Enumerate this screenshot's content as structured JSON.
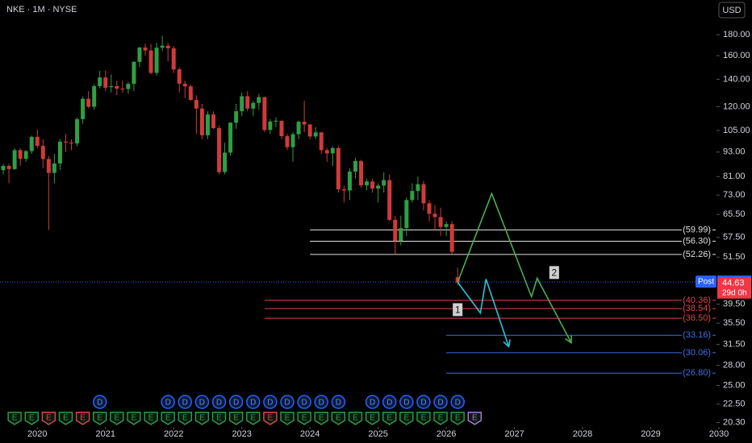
{
  "chart_data": {
    "type": "candlestick",
    "title": "NKE · 1M · NYSE",
    "currency": "USD",
    "log_scale": true,
    "up_color": "#2f9e44",
    "down_color": "#d03a3a",
    "x": [
      "2019-06",
      "2019-07",
      "2019-08",
      "2019-09",
      "2019-10",
      "2019-11",
      "2019-12",
      "2020-01",
      "2020-02",
      "2020-03",
      "2020-04",
      "2020-05",
      "2020-06",
      "2020-07",
      "2020-08",
      "2020-09",
      "2020-10",
      "2020-11",
      "2020-12",
      "2021-01",
      "2021-02",
      "2021-03",
      "2021-04",
      "2021-05",
      "2021-06",
      "2021-07",
      "2021-08",
      "2021-09",
      "2021-10",
      "2021-11",
      "2021-12",
      "2022-01",
      "2022-02",
      "2022-03",
      "2022-04",
      "2022-05",
      "2022-06",
      "2022-07",
      "2022-08",
      "2022-09",
      "2022-10",
      "2022-11",
      "2022-12",
      "2023-01",
      "2023-02",
      "2023-03",
      "2023-04",
      "2023-05",
      "2023-06",
      "2023-07",
      "2023-08",
      "2023-09",
      "2023-10",
      "2023-11",
      "2023-12",
      "2024-01",
      "2024-02",
      "2024-03",
      "2024-04",
      "2024-05",
      "2024-06",
      "2024-07",
      "2024-08",
      "2024-09",
      "2024-10",
      "2024-11",
      "2024-12",
      "2025-01",
      "2025-02",
      "2025-03",
      "2025-04",
      "2025-05",
      "2025-06",
      "2025-07",
      "2025-08",
      "2025-09",
      "2025-10",
      "2025-11",
      "2025-12",
      "2026-01",
      "2026-02",
      "2026-03"
    ],
    "ohlc": [
      [
        82,
        86,
        77,
        84
      ],
      [
        84,
        87,
        82,
        86
      ],
      [
        86,
        87,
        78,
        84.5
      ],
      [
        84.5,
        95,
        84,
        94
      ],
      [
        94,
        95,
        86,
        89.5
      ],
      [
        89.5,
        94,
        88,
        93.5
      ],
      [
        93.5,
        102,
        92,
        101.3
      ],
      [
        101.3,
        105.6,
        95,
        96.3
      ],
      [
        96.3,
        100,
        85,
        89.4
      ],
      [
        89.4,
        91,
        60,
        82.7
      ],
      [
        82.7,
        92,
        78,
        87.2
      ],
      [
        87.2,
        100,
        84,
        98.6
      ],
      [
        98.6,
        103,
        93,
        98.1
      ],
      [
        98.1,
        100,
        94,
        97.6
      ],
      [
        97.6,
        113,
        96,
        111.9
      ],
      [
        111.9,
        127,
        109,
        125.5
      ],
      [
        125.5,
        131,
        119,
        120
      ],
      [
        120,
        136,
        118,
        134.7
      ],
      [
        134.7,
        147,
        133,
        141.5
      ],
      [
        141.5,
        147,
        131,
        133.6
      ],
      [
        134,
        144,
        130,
        134.8
      ],
      [
        134.8,
        139,
        128,
        132.9
      ],
      [
        132.9,
        139,
        130,
        132.6
      ],
      [
        132.6,
        138,
        129,
        136.5
      ],
      [
        136.5,
        155,
        131,
        154.5
      ],
      [
        154.5,
        168,
        150,
        167.5
      ],
      [
        167.5,
        171,
        160,
        164.7
      ],
      [
        164.7,
        171,
        144,
        145.2
      ],
      [
        145.2,
        172,
        143,
        167.3
      ],
      [
        167.3,
        179,
        164,
        169.2
      ],
      [
        169.2,
        172,
        155,
        166.7
      ],
      [
        166.7,
        169,
        145,
        148.1
      ],
      [
        148.1,
        150,
        130,
        136.6
      ],
      [
        136.6,
        139,
        126,
        134.6
      ],
      [
        134.6,
        136,
        124,
        124.7
      ],
      [
        124.7,
        128,
        103,
        118.8
      ],
      [
        118.8,
        122,
        100,
        102.2
      ],
      [
        102.2,
        117,
        100,
        114.9
      ],
      [
        114.9,
        117,
        106,
        106.4
      ],
      [
        106.4,
        108,
        82,
        83.1
      ],
      [
        83.1,
        98,
        82,
        92.7
      ],
      [
        92.7,
        110,
        91,
        109.7
      ],
      [
        109.7,
        122,
        106,
        117
      ],
      [
        117,
        130,
        114,
        127.3
      ],
      [
        127.3,
        131,
        117,
        118.8
      ],
      [
        118.8,
        124,
        114,
        122.6
      ],
      [
        122.6,
        129,
        118,
        126.7
      ],
      [
        126.7,
        127,
        104,
        105.3
      ],
      [
        105.3,
        112,
        103,
        110.4
      ],
      [
        110.4,
        113,
        107,
        110.9
      ],
      [
        110.9,
        111,
        100,
        101.7
      ],
      [
        101.7,
        103,
        94,
        95.6
      ],
      [
        95.6,
        104,
        88,
        102.8
      ],
      [
        102.8,
        111,
        100,
        110.3
      ],
      [
        110.3,
        124,
        104,
        108.6
      ],
      [
        108.6,
        109,
        100,
        101.5
      ],
      [
        101.5,
        107,
        100,
        103.9
      ],
      [
        103.9,
        104,
        92,
        94
      ],
      [
        94,
        95,
        88,
        92.3
      ],
      [
        92.3,
        96,
        86,
        95.1
      ],
      [
        95.1,
        96,
        74,
        75.4
      ],
      [
        75.4,
        77,
        70,
        74.9
      ],
      [
        74.9,
        85,
        71,
        83.3
      ],
      [
        83.3,
        90,
        80,
        88.4
      ],
      [
        88.4,
        89,
        76,
        77.1
      ],
      [
        77.1,
        80,
        75,
        78.8
      ],
      [
        78.8,
        80,
        74,
        75.7
      ],
      [
        75.7,
        78,
        70,
        77
      ],
      [
        77,
        83,
        74,
        79.4
      ],
      [
        79.4,
        82,
        63,
        63.5
      ],
      [
        63.5,
        65,
        52.3,
        56.4
      ],
      [
        56.4,
        65,
        55,
        60.6
      ],
      [
        60.6,
        72,
        58,
        71
      ],
      [
        71,
        78,
        70,
        74.7
      ],
      [
        74.7,
        81,
        71,
        77.6
      ],
      [
        77.6,
        79,
        67,
        69.7
      ],
      [
        69.7,
        71,
        63,
        65.7
      ],
      [
        65.7,
        69,
        60,
        64.5
      ],
      [
        64.5,
        68,
        58,
        61
      ],
      [
        61,
        63,
        58,
        62
      ],
      [
        62,
        63,
        52,
        53
      ],
      [
        46,
        48.5,
        44,
        44.63
      ]
    ],
    "xlim": [
      "2019-06",
      "2030-01"
    ],
    "xticks": [
      {
        "value": "2020-01",
        "label": "2020"
      },
      {
        "value": "2021-01",
        "label": "2021"
      },
      {
        "value": "2022-01",
        "label": "2022"
      },
      {
        "value": "2023-01",
        "label": "2023"
      },
      {
        "value": "2024-01",
        "label": "2024"
      },
      {
        "value": "2025-01",
        "label": "2025"
      },
      {
        "value": "2026-01",
        "label": "2026"
      },
      {
        "value": "2027-01",
        "label": "2027"
      },
      {
        "value": "2028-01",
        "label": "2028"
      },
      {
        "value": "2029-01",
        "label": "2029"
      },
      {
        "value": "2030-01",
        "label": "2030"
      }
    ],
    "ylim": [
      19.8,
      191
    ],
    "yticks": [
      {
        "value": 180,
        "label": "180.00"
      },
      {
        "value": 160,
        "label": "160.00"
      },
      {
        "value": 140,
        "label": "140.00"
      },
      {
        "value": 120,
        "label": "120.00"
      },
      {
        "value": 105,
        "label": "105.00"
      },
      {
        "value": 93,
        "label": "93.00"
      },
      {
        "value": 81,
        "label": "81.00"
      },
      {
        "value": 73,
        "label": "73.00"
      },
      {
        "value": 65.5,
        "label": "65.50"
      },
      {
        "value": 57.5,
        "label": "57.50"
      },
      {
        "value": 51.5,
        "label": "51.50"
      },
      {
        "value": 39.5,
        "label": "39.50"
      },
      {
        "value": 35.5,
        "label": "35.50"
      },
      {
        "value": 31.5,
        "label": "31.50"
      },
      {
        "value": 28,
        "label": "28.00"
      },
      {
        "value": 25,
        "label": "25.00"
      },
      {
        "value": 22.5,
        "label": "22.50"
      },
      {
        "value": 20.3,
        "label": "20.30"
      }
    ],
    "levels": [
      {
        "value": 59.99,
        "label": "(59.99)",
        "color": "#e0e0e0",
        "start": "2024-01"
      },
      {
        "value": 56.3,
        "label": "(56.30)",
        "color": "#e0e0e0",
        "start": "2024-01"
      },
      {
        "value": 52.26,
        "label": "(52.26)",
        "color": "#e0e0e0",
        "start": "2024-01"
      },
      {
        "value": 40.36,
        "label": "(40.36)",
        "color": "#e0454f",
        "start": "2023-05"
      },
      {
        "value": 38.54,
        "label": "(38.54)",
        "color": "#e0454f",
        "start": "2023-05"
      },
      {
        "value": 36.5,
        "label": "(36.50)",
        "color": "#e0454f",
        "start": "2023-05"
      },
      {
        "value": 33.16,
        "label": "(33.16)",
        "color": "#3d6fe0",
        "start": "2026-01"
      },
      {
        "value": 30.06,
        "label": "(30.06)",
        "color": "#3d6fe0",
        "start": "2026-01"
      },
      {
        "value": 26.8,
        "label": "(26.80)",
        "color": "#3d6fe0",
        "start": "2026-01"
      }
    ],
    "projections": [
      {
        "color": "#4caf50",
        "points": [
          {
            "x": "2026-03",
            "y": 44.7
          },
          {
            "x": "2026-09",
            "y": 73.6
          },
          {
            "x": "2027-04",
            "y": 41.2
          },
          {
            "x": "2027-05",
            "y": 45.7
          },
          {
            "x": "2027-11",
            "y": 31.8
          }
        ]
      },
      {
        "color": "#26c6da",
        "points": [
          {
            "x": "2026-03",
            "y": 44.7
          },
          {
            "x": "2026-07",
            "y": 37.6
          },
          {
            "x": "2026-08",
            "y": 45.5
          },
          {
            "x": "2026-12",
            "y": 31.1
          }
        ]
      }
    ],
    "annotations": [
      {
        "text": "1",
        "x": "2026-03",
        "y": 38.3
      },
      {
        "text": "2",
        "x": "2027-08",
        "y": 47.2
      }
    ],
    "post_price": {
      "label": "Post",
      "value": 44.76
    },
    "last_price": {
      "value": 44.63,
      "countdown": "29d 0h"
    },
    "dividends": {
      "label": "D",
      "months": [
        "2020-12",
        "2021-12",
        "2022-03",
        "2022-06",
        "2022-09",
        "2022-12",
        "2023-03",
        "2023-06",
        "2023-09",
        "2023-12",
        "2024-03",
        "2024-06",
        "2024-12",
        "2025-03",
        "2025-06",
        "2025-09",
        "2025-12",
        "2026-03"
      ]
    },
    "earnings": {
      "label": "E",
      "months": [
        "2019-09",
        "2019-12",
        "2020-03",
        "2020-06",
        "2020-09",
        "2020-12",
        "2021-03",
        "2021-06",
        "2021-09",
        "2021-12",
        "2022-03",
        "2022-06",
        "2022-09",
        "2022-12",
        "2023-03",
        "2023-06",
        "2023-09",
        "2023-12",
        "2024-03",
        "2024-06",
        "2024-09",
        "2024-12",
        "2025-03",
        "2025-06",
        "2025-09",
        "2025-12",
        "2026-03",
        "2026-06"
      ],
      "colors": [
        "#2f9e44",
        "#2f9e44",
        "#e0454f",
        "#2f9e44",
        "#e0454f",
        "#2f9e44",
        "#2f9e44",
        "#2f9e44",
        "#2f9e44",
        "#2f9e44",
        "#2f9e44",
        "#2f9e44",
        "#2f9e44",
        "#2f9e44",
        "#2f9e44",
        "#e0454f",
        "#2f9e44",
        "#2f9e44",
        "#2f9e44",
        "#2f9e44",
        "#2f9e44",
        "#2f9e44",
        "#2f9e44",
        "#2f9e44",
        "#2f9e44",
        "#2f9e44",
        "#2f9e44",
        "#b07be0"
      ]
    }
  }
}
